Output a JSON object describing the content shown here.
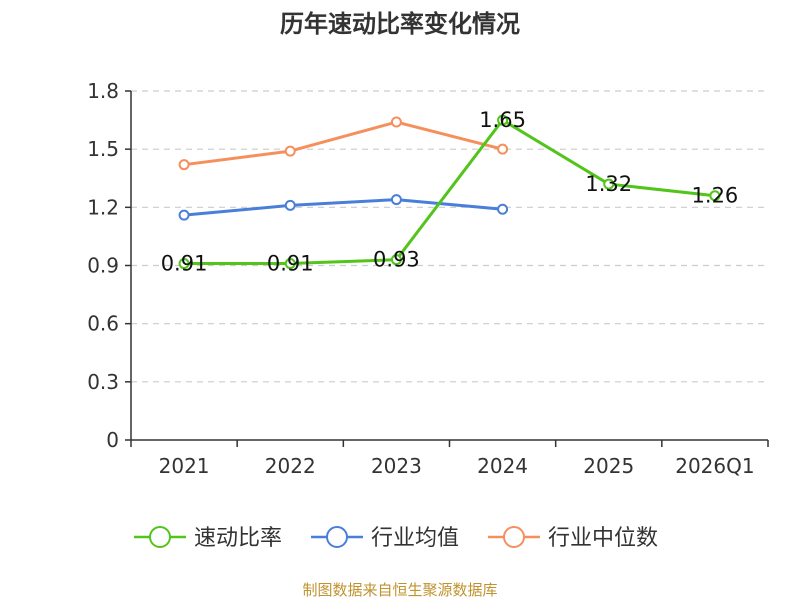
{
  "chart_data": {
    "type": "line",
    "title": "历年速动比率变化情况",
    "categories": [
      "2021",
      "2022",
      "2023",
      "2024",
      "2025",
      "2026Q1"
    ],
    "ylim": [
      0,
      1.8
    ],
    "yticks": [
      0,
      0.3,
      0.6,
      0.9,
      1.2,
      1.5,
      1.8
    ],
    "ytick_labels": [
      "0",
      "0.3",
      "0.6",
      "0.9",
      "1.2",
      "1.5",
      "1.8"
    ],
    "grid": true,
    "legend_position": "bottom",
    "series": [
      {
        "name": "速动比率",
        "color": "#52c41a",
        "values": [
          0.91,
          0.91,
          0.93,
          1.65,
          1.32,
          1.26
        ],
        "labels": [
          "0.91",
          "0.91",
          "0.93",
          "1.65",
          "1.32",
          "1.26"
        ],
        "show_labels": true
      },
      {
        "name": "行业均值",
        "color": "#4a7fd9",
        "values": [
          1.16,
          1.21,
          1.24,
          1.19,
          null,
          null
        ],
        "show_labels": false
      },
      {
        "name": "行业中位数",
        "color": "#f58f5c",
        "values": [
          1.42,
          1.49,
          1.64,
          1.5,
          null,
          null
        ],
        "show_labels": false
      }
    ]
  },
  "footer": {
    "source": "制图数据来自恒生聚源数据库"
  }
}
